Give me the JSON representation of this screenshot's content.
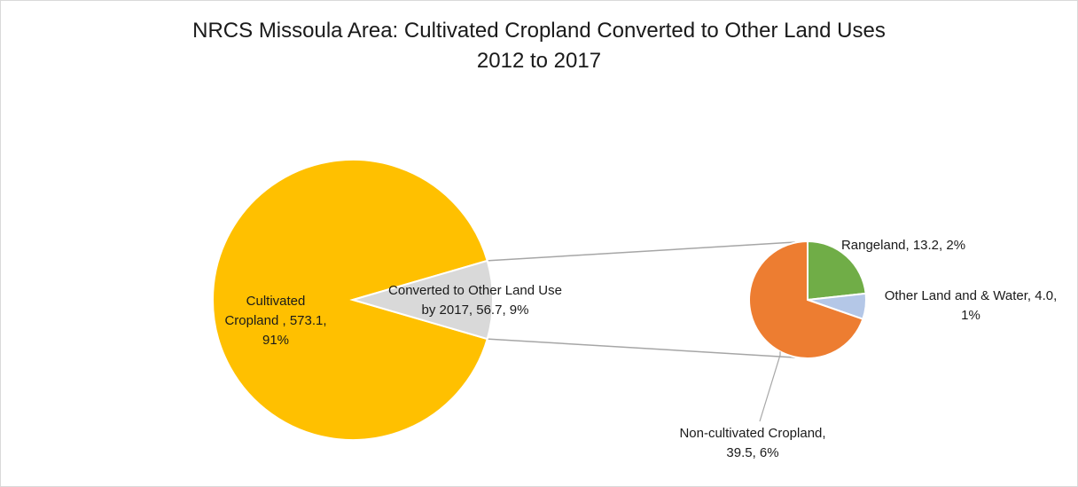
{
  "chart_data": {
    "type": "pie",
    "subtype": "pie-of-pie",
    "title_line1": "NRCS Missoula Area: Cultivated Cropland Converted to Other Land Uses",
    "title_line2": "2012 to 2017",
    "main_slices": [
      {
        "label": "Cultivated Cropland",
        "value": 573.1,
        "percent": "91%",
        "color": "#ffc000",
        "label_lines": [
          "Cultivated",
          "Cropland , 573.1,",
          "91%"
        ]
      },
      {
        "label": "Converted to Other Land Use by 2017",
        "value": 56.7,
        "percent": "9%",
        "color": "#d9d9d9",
        "label_lines": [
          "Converted to Other Land Use",
          "by 2017, 56.7, 9%"
        ]
      }
    ],
    "secondary_slices": [
      {
        "label": "Rangeland",
        "value": 13.2,
        "percent": "2%",
        "color": "#70ad47",
        "label_lines": [
          "Rangeland, 13.2, 2%"
        ]
      },
      {
        "label": "Other Land and & Water",
        "value": 4.0,
        "percent": "1%",
        "color": "#b4c7e7",
        "label_lines": [
          "Other Land and & Water, 4.0,",
          "1%"
        ]
      },
      {
        "label": "Non-cultivated Cropland",
        "value": 39.5,
        "percent": "6%",
        "color": "#ed7d31",
        "label_lines": [
          "Non-cultivated Cropland,",
          "39.5, 6%"
        ]
      }
    ],
    "legend": "none"
  }
}
